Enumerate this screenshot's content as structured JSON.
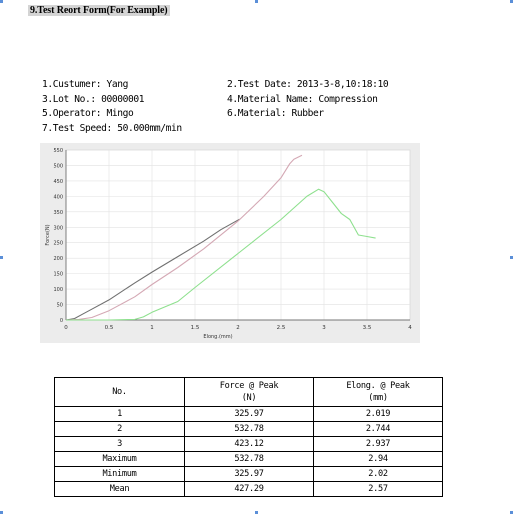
{
  "document": {
    "heading": "9.Test Reort Form(For Example)",
    "info": {
      "customer": "1.Custumer: Yang",
      "test_date": "2.Test Date: 2013-3-8,10:18:10",
      "lot_no": "3.Lot No.: 00000001",
      "material_name": "4.Material Name: Compression",
      "operator": "5.Operator: Mingo",
      "material": "6.Material: Rubber",
      "test_speed": "7.Test Speed: 50.000mm/min"
    }
  },
  "chart_data": {
    "type": "line",
    "title": "",
    "xlabel": "Elong.(mm)",
    "ylabel": "Force(N)",
    "xlim": [
      0,
      4
    ],
    "ylim": [
      0,
      550
    ],
    "x_ticks": [
      0,
      0.5,
      1,
      1.5,
      2,
      2.5,
      3,
      3.5,
      4
    ],
    "x_tick_labels": [
      "0",
      "0.5",
      "1",
      "1.5",
      "2",
      "2.5",
      "3",
      "3.5",
      "4"
    ],
    "y_ticks": [
      0,
      50,
      100,
      150,
      200,
      250,
      300,
      350,
      400,
      450,
      500,
      550
    ],
    "grid": true,
    "legend": "none",
    "series": [
      {
        "color": "#707070",
        "x": [
          0,
          0.1,
          0.2,
          0.3,
          0.5,
          0.8,
          1.0,
          1.3,
          1.6,
          1.8,
          2.019
        ],
        "y": [
          0,
          5,
          20,
          35,
          65,
          120,
          155,
          205,
          255,
          292,
          325.97
        ]
      },
      {
        "color": "#d4a8b4",
        "x": [
          0,
          0.15,
          0.3,
          0.5,
          0.8,
          1.0,
          1.3,
          1.6,
          2.0,
          2.3,
          2.5,
          2.6,
          2.65,
          2.744
        ],
        "y": [
          0,
          2,
          8,
          30,
          75,
          115,
          170,
          230,
          320,
          400,
          460,
          505,
          520,
          532.78
        ]
      },
      {
        "color": "#8ee08e",
        "x": [
          0,
          0.5,
          0.8,
          0.9,
          1.0,
          1.3,
          1.5,
          2.0,
          2.5,
          2.8,
          2.937,
          3.0,
          3.1,
          3.2,
          3.3,
          3.4,
          3.5,
          3.6
        ],
        "y": [
          0,
          0,
          2,
          10,
          25,
          60,
          105,
          215,
          325,
          400,
          423.12,
          415,
          380,
          345,
          325,
          275,
          270,
          265
        ]
      }
    ]
  },
  "table": {
    "headers": [
      "No.",
      "Force @ Peak\n(N)",
      "Elong. @ Peak\n(mm)"
    ],
    "rows": [
      [
        "1",
        "325.97",
        "2.019"
      ],
      [
        "2",
        "532.78",
        "2.744"
      ],
      [
        "3",
        "423.12",
        "2.937"
      ],
      [
        "Maximum",
        "532.78",
        "2.94"
      ],
      [
        "Minimum",
        "325.97",
        "2.02"
      ],
      [
        "Mean",
        "427.29",
        "2.57"
      ]
    ]
  }
}
